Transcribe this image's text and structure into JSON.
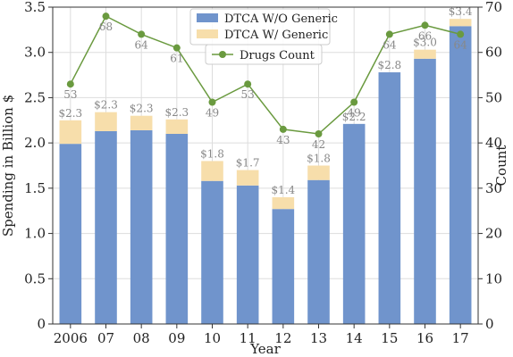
{
  "chart_data": {
    "type": "bar",
    "categories": [
      "2006",
      "07",
      "08",
      "09",
      "10",
      "11",
      "12",
      "13",
      "14",
      "15",
      "16",
      "17"
    ],
    "series": [
      {
        "name": "DTCA W/O Generic",
        "kind": "bar",
        "axis": "left",
        "color": "#7094cc",
        "values": [
          1.99,
          2.13,
          2.14,
          2.1,
          1.58,
          1.53,
          1.27,
          1.59,
          2.21,
          2.78,
          2.93,
          3.29
        ]
      },
      {
        "name": "DTCA W/ Generic",
        "kind": "bar",
        "axis": "left",
        "color": "#f7deab",
        "values": [
          0.26,
          0.21,
          0.16,
          0.16,
          0.22,
          0.17,
          0.13,
          0.16,
          0.0,
          0.0,
          0.1,
          0.08
        ]
      },
      {
        "name": "Drugs Count",
        "kind": "line",
        "axis": "right",
        "color": "#6a9a3f",
        "values": [
          53,
          68,
          64,
          61,
          49,
          53,
          43,
          42,
          49,
          64,
          66,
          64
        ]
      }
    ],
    "bar_total_labels": [
      "$2.3",
      "$2.3",
      "$2.3",
      "$2.3",
      "$1.8",
      "$1.7",
      "$1.4",
      "$1.8",
      "$2.2",
      "$2.8",
      "$3.0",
      "$3.4"
    ],
    "count_labels": [
      "53",
      "68",
      "64",
      "61",
      "49",
      "53",
      "43",
      "42",
      "49",
      "64",
      "66",
      "64"
    ],
    "xlabel": "Year",
    "ylabel": "Spending in Billion $",
    "y2label": "Count",
    "ylim": [
      0,
      3.5
    ],
    "y2lim": [
      0,
      70
    ],
    "yticks": [
      "0",
      "0.5",
      "1.0",
      "1.5",
      "2.0",
      "2.5",
      "3.0",
      "3.5"
    ],
    "y2ticks": [
      "0",
      "10",
      "20",
      "30",
      "40",
      "50",
      "60",
      "70"
    ],
    "grid": true,
    "legend_position": "top-center"
  }
}
